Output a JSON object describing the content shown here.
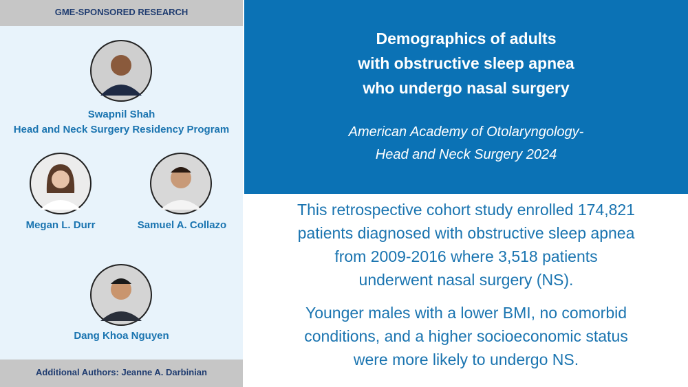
{
  "header": {
    "label": "GME-SPONSORED RESEARCH"
  },
  "authors": [
    {
      "name": "Swapnil Shah",
      "affiliation": "Head and Neck Surgery Residency Program"
    },
    {
      "name": "Megan L. Durr"
    },
    {
      "name": "Samuel A. Collazo"
    },
    {
      "name": "Dang Khoa Nguyen"
    }
  ],
  "footer": {
    "text": "Additional Authors: Jeanne A. Darbinian"
  },
  "title": {
    "lines": [
      "Demographics of adults",
      "with obstructive sleep apnea",
      "who undergo nasal surgery"
    ]
  },
  "conference": {
    "lines": [
      "American Academy of Otolaryngology-",
      "Head and Neck Surgery 2024"
    ]
  },
  "body": {
    "paragraphs": [
      [
        "This retrospective cohort study enrolled 174,821",
        "patients diagnosed with obstructive sleep apnea",
        "from 2009-2016 where 3,518 patients",
        "underwent nasal surgery (NS)."
      ],
      [
        "Younger males with a lower BMI, no comorbid",
        "conditions, and a higher socioeconomic status",
        "were more likely to undergo NS."
      ]
    ]
  }
}
